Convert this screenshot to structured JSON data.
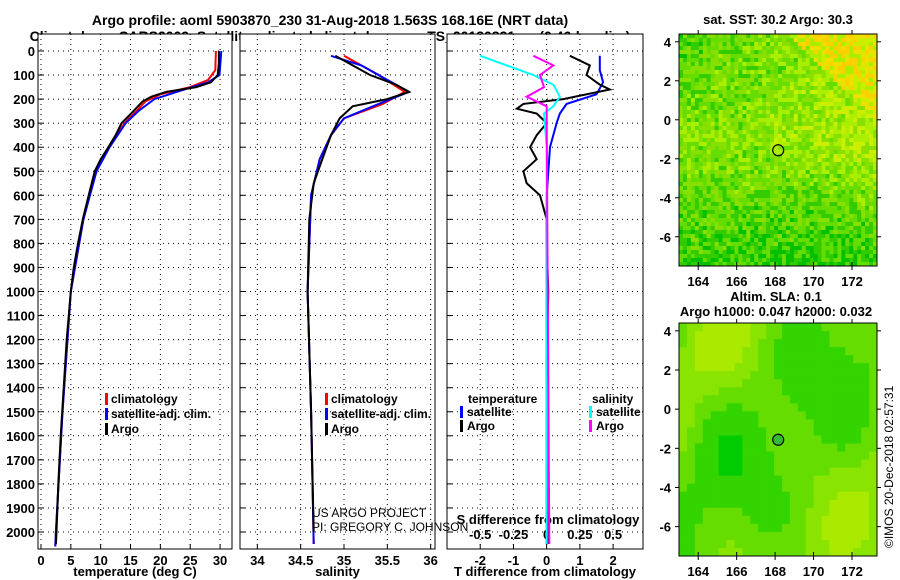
{
  "title_line1": "Argo profile: aoml 5903870_230 31-Aug-2018 1.563S 168.16E (NRT data)",
  "title_line2": "Climatology: CARS2009. Satellite-adjusted climatology: synTS_20180831.nc (0.46d earlier)",
  "copyright": "©IMOS 20-Dec-2018 02:57:31",
  "credit_line1": "US ARGO PROJECT",
  "credit_line2": "PI: GREGORY C. JOHNSON",
  "depth_ticks": [
    "0",
    "100",
    "200",
    "300",
    "400",
    "500",
    "600",
    "700",
    "800",
    "900",
    "1000",
    "1100",
    "1200",
    "1300",
    "1400",
    "1500",
    "1600",
    "1700",
    "1800",
    "1900",
    "2000"
  ],
  "colors": {
    "climatology": "#ff0000",
    "satellite": "#0000ff",
    "argo": "#000000",
    "sal_satellite": "#00ffff",
    "sal_argo": "#ff00ff"
  },
  "chart_data": [
    {
      "type": "line",
      "name": "temperature",
      "xlabel": "temperature (deg C)",
      "xlim": [
        -0.5,
        32
      ],
      "ylim": [
        2070,
        0
      ],
      "xticks": [
        "0",
        "5",
        "10",
        "15",
        "20",
        "25",
        "30"
      ],
      "xtick_values": [
        0,
        5,
        10,
        15,
        20,
        25,
        30
      ],
      "legend": [
        "climatology",
        "satellite-adj. clim.",
        "Argo"
      ],
      "series": [
        {
          "name": "climatology",
          "color": "#ff0000",
          "depth": [
            0,
            80,
            120,
            150,
            180,
            210,
            250,
            300,
            400,
            500,
            700,
            1000,
            1500,
            2000,
            2060
          ],
          "values": [
            29.3,
            29.2,
            28,
            25,
            20,
            17.5,
            16,
            14,
            11.3,
            9.2,
            7.1,
            5,
            3.6,
            2.5,
            2.4
          ]
        },
        {
          "name": "satellite-adj. clim.",
          "color": "#0000ff",
          "depth": [
            0,
            100,
            130,
            160,
            200,
            250,
            300,
            400,
            500,
            700,
            1000,
            1500,
            2000,
            2060
          ],
          "values": [
            30.2,
            29.9,
            28,
            24,
            19,
            16.3,
            14.2,
            11.5,
            9.3,
            7.1,
            5,
            3.6,
            2.5,
            2.4
          ]
        },
        {
          "name": "Argo",
          "color": "#000000",
          "depth": [
            0,
            50,
            100,
            130,
            150,
            170,
            190,
            210,
            250,
            300,
            350,
            400,
            450,
            500,
            600,
            700,
            800,
            900,
            1000,
            1200,
            1400,
            1600,
            1800,
            2000,
            2050
          ],
          "values": [
            29.8,
            29.8,
            29.6,
            28.5,
            26,
            21,
            18.5,
            17,
            15.5,
            13.5,
            12.5,
            11.3,
            10,
            9,
            8,
            7,
            6.2,
            5.5,
            5,
            4.3,
            3.8,
            3.3,
            2.9,
            2.6,
            2.5
          ]
        }
      ]
    },
    {
      "type": "line",
      "name": "salinity",
      "xlabel": "salinity",
      "xlim": [
        33.8,
        36.05
      ],
      "ylim": [
        2070,
        0
      ],
      "xticks": [
        "34",
        "34.5",
        "35",
        "35.5",
        "36"
      ],
      "xtick_values": [
        34,
        34.5,
        35,
        35.5,
        36
      ],
      "legend": [
        "climatology",
        "satellite-adj. clim.",
        "Argo"
      ],
      "series": [
        {
          "name": "climatology",
          "color": "#ff0000",
          "depth": [
            20,
            100,
            170,
            220,
            280,
            350,
            450,
            600,
            1000,
            1500,
            2050
          ],
          "values": [
            35.0,
            35.4,
            35.7,
            35.45,
            35.0,
            34.85,
            34.72,
            34.62,
            34.58,
            34.62,
            34.65
          ]
        },
        {
          "name": "satellite-adj. clim.",
          "color": "#0000ff",
          "depth": [
            20,
            60,
            120,
            170,
            220,
            280,
            350,
            450,
            600,
            1000,
            1500,
            2050
          ],
          "values": [
            34.85,
            35.2,
            35.5,
            35.75,
            35.4,
            35.0,
            34.85,
            34.72,
            34.62,
            34.58,
            34.62,
            34.65
          ]
        },
        {
          "name": "Argo",
          "color": "#000000",
          "depth": [
            20,
            60,
            100,
            140,
            170,
            200,
            230,
            280,
            350,
            450,
            550,
            700,
            1000,
            1500,
            2000
          ],
          "values": [
            34.9,
            35.1,
            35.3,
            35.6,
            35.75,
            35.5,
            35.1,
            34.95,
            34.85,
            34.75,
            34.65,
            34.6,
            34.58,
            34.62,
            34.65
          ]
        }
      ]
    },
    {
      "type": "line",
      "name": "difference",
      "xlabel": "T difference from climatology",
      "x2label": "S difference from climatology",
      "xlim": [
        -3,
        2.9
      ],
      "ylim": [
        2070,
        0
      ],
      "xticks": [
        "-2",
        "-1",
        "0",
        "1",
        "2"
      ],
      "xtick_values": [
        -2,
        -1,
        0,
        1,
        2
      ],
      "x2ticks": [
        "-0.5",
        "-0.25",
        "0",
        "0.25",
        "0.5"
      ],
      "x2tick_values": [
        -0.5,
        -0.25,
        0,
        0.25,
        0.5
      ],
      "legend_titles": [
        "temperature",
        "salinity"
      ],
      "legend": [
        "satellite",
        "Argo",
        "satellite",
        "Argo"
      ],
      "series": [
        {
          "name": "T satellite",
          "color": "#0000ff",
          "axis": "T",
          "depth": [
            20,
            80,
            130,
            180,
            220,
            260,
            300,
            400,
            600,
            2050
          ],
          "values": [
            1.6,
            1.6,
            1.7,
            1.5,
            0.6,
            0.4,
            0.3,
            0.1,
            0,
            0
          ]
        },
        {
          "name": "T Argo",
          "color": "#000000",
          "axis": "T",
          "depth": [
            20,
            60,
            100,
            140,
            160,
            200,
            220,
            240,
            260,
            300,
            350,
            400,
            450,
            500,
            550,
            600,
            700,
            800,
            1000,
            1300,
            1600,
            2050
          ],
          "values": [
            0.7,
            1.3,
            1.2,
            1.6,
            1.9,
            0.5,
            -0.7,
            -0.9,
            -0.3,
            0,
            -0.3,
            -0.5,
            -0.3,
            -0.7,
            -0.6,
            -0.2,
            0,
            0,
            0.05,
            0,
            0.05,
            0.05
          ]
        },
        {
          "name": "S satellite",
          "color": "#00ffff",
          "axis": "S",
          "depth": [
            20,
            60,
            100,
            140,
            190,
            230,
            260,
            400,
            2050
          ],
          "values": [
            -0.5,
            -0.3,
            -0.1,
            0.05,
            0.1,
            0.05,
            -0.02,
            0,
            0
          ]
        },
        {
          "name": "S Argo",
          "color": "#ff00ff",
          "axis": "S",
          "depth": [
            20,
            60,
            100,
            150,
            190,
            230,
            300,
            2050
          ],
          "values": [
            -0.1,
            0.05,
            -0.05,
            -0.02,
            -0.15,
            0,
            0,
            0.02
          ]
        }
      ]
    },
    {
      "type": "heatmap",
      "name": "sst-map",
      "title": "sat. SST: 30.2 Argo: 30.3",
      "xlim": [
        163,
        173.3
      ],
      "ylim": [
        -7.5,
        4.4
      ],
      "xticks": [
        "164",
        "166",
        "168",
        "170",
        "172"
      ],
      "xtick_values": [
        164,
        166,
        168,
        170,
        172
      ],
      "yticks": [
        "4",
        "2",
        "0",
        "-2",
        "-4",
        "-6"
      ],
      "ytick_values": [
        4,
        2,
        0,
        -2,
        -4,
        -6
      ],
      "marker": {
        "lon": 168.16,
        "lat": -1.563
      }
    },
    {
      "type": "heatmap",
      "name": "sla-map",
      "title": "Altim. SLA: 0.1",
      "subtitle": "Argo h1000: 0.047 h2000: 0.032",
      "xlim": [
        163,
        173.3
      ],
      "ylim": [
        -7.5,
        4.4
      ],
      "xticks": [
        "164",
        "166",
        "168",
        "170",
        "172"
      ],
      "xtick_values": [
        164,
        166,
        168,
        170,
        172
      ],
      "yticks": [
        "4",
        "2",
        "0",
        "-2",
        "-4",
        "-6"
      ],
      "ytick_values": [
        4,
        2,
        0,
        -2,
        -4,
        -6
      ],
      "marker": {
        "lon": 168.16,
        "lat": -1.563
      }
    }
  ]
}
